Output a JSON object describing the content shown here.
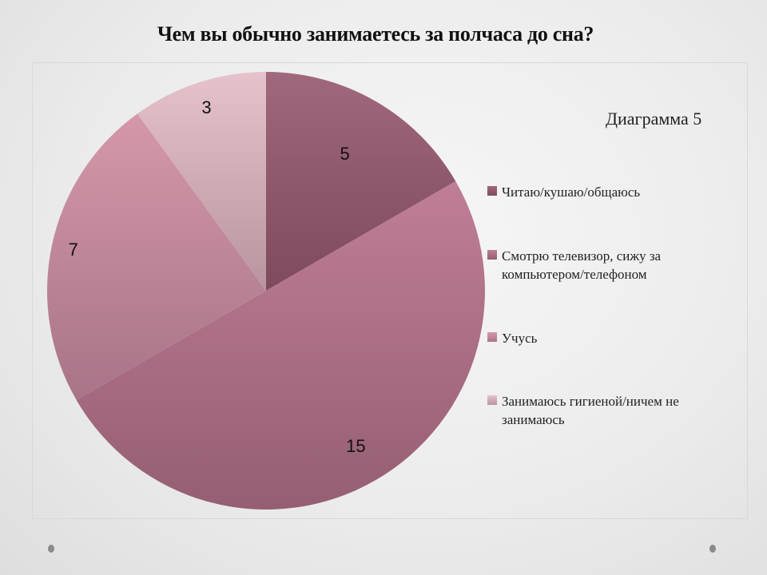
{
  "slide": {
    "title": "Чем вы обычно занимаетесь за полчаса до сна?",
    "subtitle": "Диаграмма 5"
  },
  "chart_data": {
    "type": "pie",
    "title": "Чем вы обычно занимаетесь за полчаса до сна?",
    "subtitle": "Диаграмма 5",
    "categories": [
      "Читаю/кушаю/общаюсь",
      "Смотрю телевизор, сижу за компьютером/телефоном",
      "Учусь",
      "Занимаюсь гигиеной/ничем не занимаюсь"
    ],
    "values": [
      5,
      15,
      7,
      3
    ],
    "colors": [
      "#8c5268",
      "#b07086",
      "#c98a9c",
      "#d8b0bb"
    ],
    "data_labels": [
      "5",
      "15",
      "7",
      "3"
    ],
    "legend_position": "right",
    "start_angle_deg": 0,
    "direction": "clockwise"
  },
  "legend": {
    "items": [
      {
        "label": "Читаю/кушаю/общаюсь"
      },
      {
        "label": "Смотрю телевизор, сижу за компьютером/телефоном"
      },
      {
        "label": "Учусь"
      },
      {
        "label": "Занимаюсь гигиеной/ничем не занимаюсь"
      }
    ]
  }
}
